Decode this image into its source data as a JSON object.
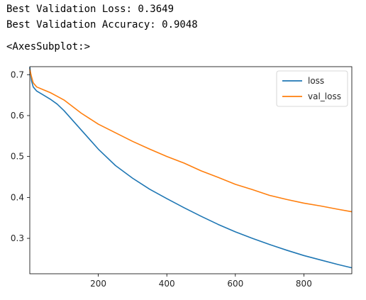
{
  "output": {
    "line1": "Best Validation Loss: 0.3649",
    "line2": "Best Validation Accuracy: 0.9048",
    "line3": "<AxesSubplot:>"
  },
  "chart_data": {
    "type": "line",
    "title": "",
    "xlabel": "",
    "ylabel": "",
    "xlim": [
      0,
      940
    ],
    "ylim": [
      0.2135,
      0.7195
    ],
    "xticks": [
      200,
      400,
      600,
      800
    ],
    "yticks": [
      0.3,
      0.4,
      0.5,
      0.6,
      0.7
    ],
    "grid": false,
    "legend_loc": "upper right",
    "series": [
      {
        "name": "loss",
        "color": "#1f77b4",
        "x": [
          0,
          5,
          10,
          20,
          40,
          60,
          80,
          100,
          150,
          200,
          250,
          300,
          350,
          400,
          450,
          500,
          550,
          600,
          650,
          700,
          750,
          800,
          850,
          900,
          940
        ],
        "y": [
          0.718,
          0.685,
          0.67,
          0.66,
          0.65,
          0.64,
          0.628,
          0.612,
          0.565,
          0.518,
          0.478,
          0.447,
          0.42,
          0.397,
          0.375,
          0.354,
          0.334,
          0.316,
          0.3,
          0.285,
          0.271,
          0.258,
          0.247,
          0.236,
          0.228
        ]
      },
      {
        "name": "val_loss",
        "color": "#ff7f0e",
        "x": [
          0,
          5,
          10,
          20,
          40,
          60,
          80,
          100,
          150,
          200,
          250,
          300,
          350,
          400,
          450,
          500,
          550,
          600,
          650,
          700,
          750,
          800,
          850,
          900,
          940
        ],
        "y": [
          0.713,
          0.695,
          0.68,
          0.67,
          0.663,
          0.656,
          0.647,
          0.638,
          0.606,
          0.579,
          0.558,
          0.537,
          0.518,
          0.5,
          0.484,
          0.465,
          0.449,
          0.432,
          0.419,
          0.405,
          0.395,
          0.386,
          0.379,
          0.371,
          0.365
        ]
      }
    ]
  }
}
